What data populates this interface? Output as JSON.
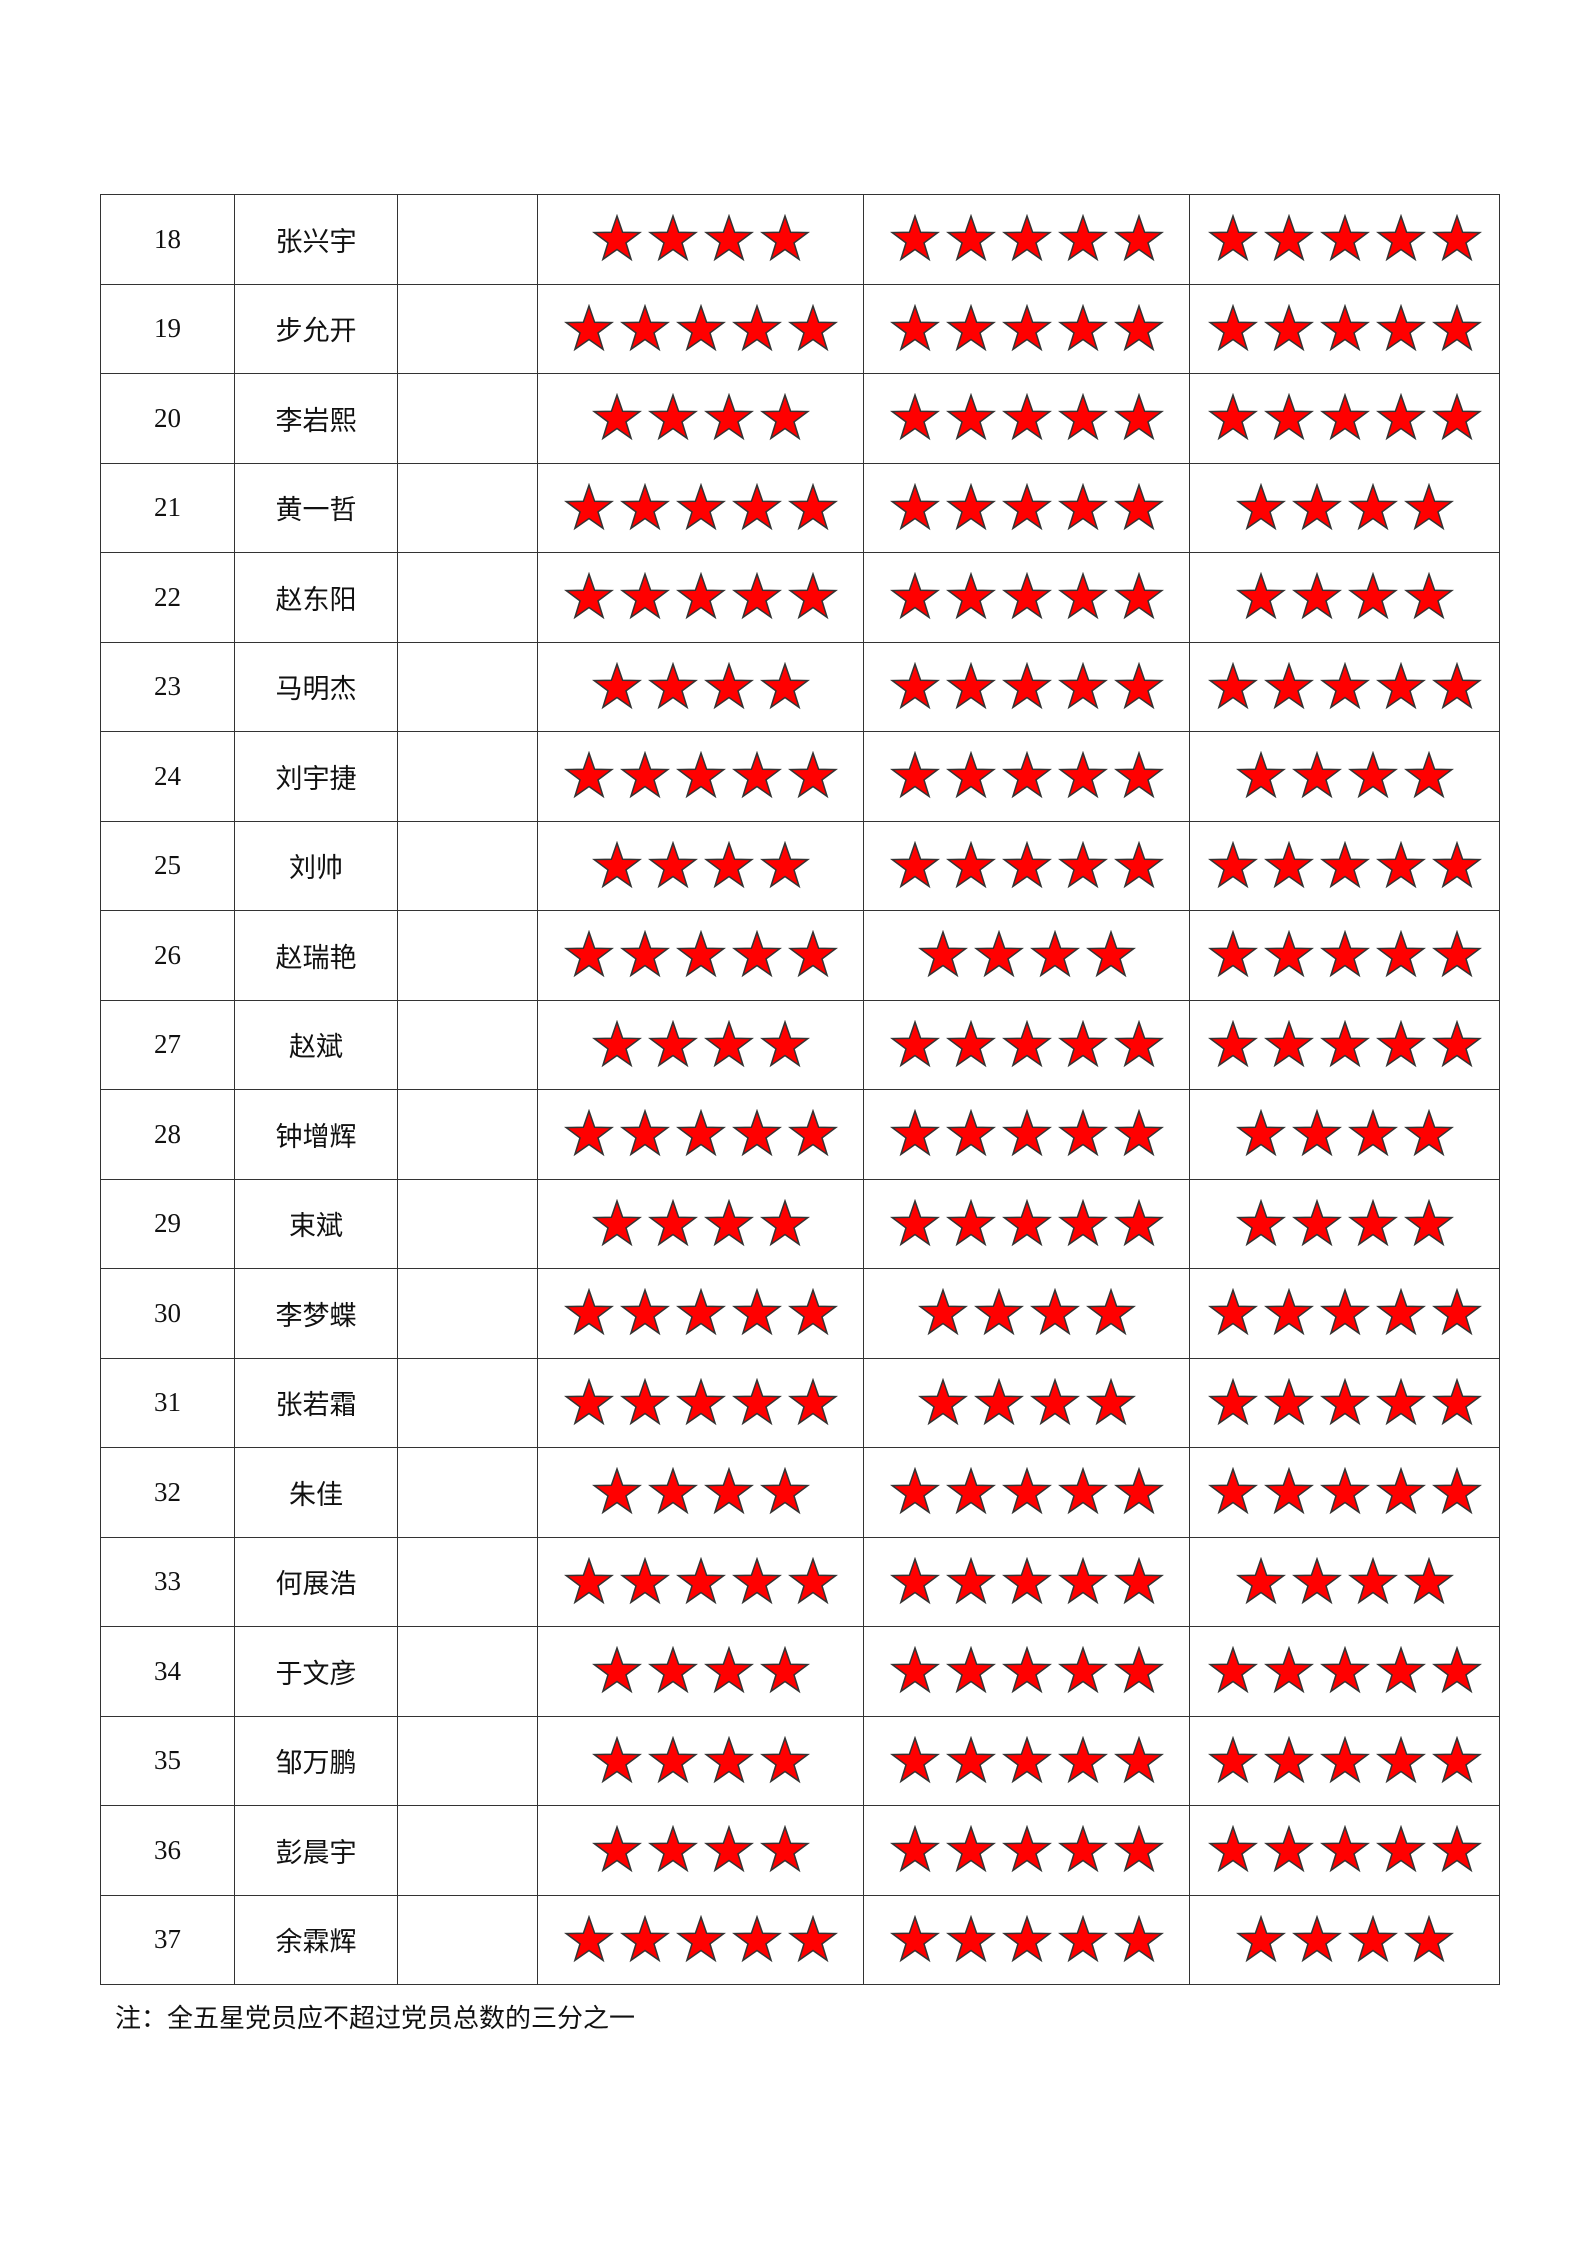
{
  "star_color": "#ff0000",
  "star_outline": "#333333",
  "rows": [
    {
      "no": "18",
      "name": "张兴宇",
      "ratings": [
        4,
        5,
        5
      ]
    },
    {
      "no": "19",
      "name": "步允开",
      "ratings": [
        5,
        5,
        5
      ]
    },
    {
      "no": "20",
      "name": "李岩熙",
      "ratings": [
        4,
        5,
        5
      ]
    },
    {
      "no": "21",
      "name": "黄一哲",
      "ratings": [
        5,
        5,
        4
      ]
    },
    {
      "no": "22",
      "name": "赵东阳",
      "ratings": [
        5,
        5,
        4
      ]
    },
    {
      "no": "23",
      "name": "马明杰",
      "ratings": [
        4,
        5,
        5
      ]
    },
    {
      "no": "24",
      "name": "刘宇捷",
      "ratings": [
        5,
        5,
        4
      ]
    },
    {
      "no": "25",
      "name": "刘帅",
      "ratings": [
        4,
        5,
        5
      ]
    },
    {
      "no": "26",
      "name": "赵瑞艳",
      "ratings": [
        5,
        4,
        5
      ]
    },
    {
      "no": "27",
      "name": "赵斌",
      "ratings": [
        4,
        5,
        5
      ]
    },
    {
      "no": "28",
      "name": "钟增辉",
      "ratings": [
        5,
        5,
        4
      ]
    },
    {
      "no": "29",
      "name": "束斌",
      "ratings": [
        4,
        5,
        4
      ]
    },
    {
      "no": "30",
      "name": "李梦蝶",
      "ratings": [
        5,
        4,
        5
      ]
    },
    {
      "no": "31",
      "name": "张若霜",
      "ratings": [
        5,
        4,
        5
      ]
    },
    {
      "no": "32",
      "name": "朱佳",
      "ratings": [
        4,
        5,
        5
      ]
    },
    {
      "no": "33",
      "name": "何展浩",
      "ratings": [
        5,
        5,
        4
      ]
    },
    {
      "no": "34",
      "name": "于文彦",
      "ratings": [
        4,
        5,
        5
      ]
    },
    {
      "no": "35",
      "name": "邹万鹏",
      "ratings": [
        4,
        5,
        5
      ]
    },
    {
      "no": "36",
      "name": "彭晨宇",
      "ratings": [
        4,
        5,
        5
      ]
    },
    {
      "no": "37",
      "name": "余霖辉",
      "ratings": [
        5,
        5,
        4
      ]
    }
  ],
  "note": "注：全五星党员应不超过党员总数的三分之一"
}
